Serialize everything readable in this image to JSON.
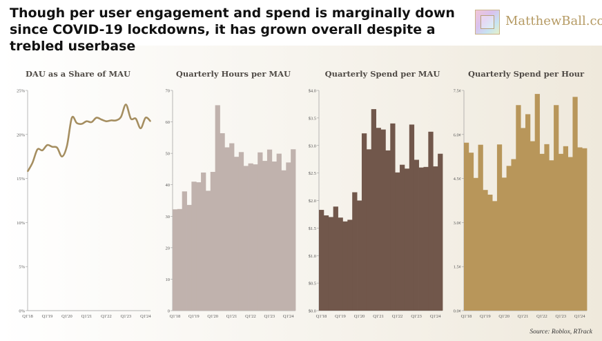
{
  "header": {
    "title": "Though per user engagement and spend is marginally down since COVID-19 lockdowns, it has grown overall despite a trebled userbase",
    "brand": "MatthewBall.co"
  },
  "source": "Source: Roblox, RTrack",
  "colors": {
    "dau": "#a58e60",
    "hours": "#c0b2ad",
    "spend_mau": "#71574b",
    "spend_hour": "#b8965a",
    "axis": "#9a9a9a",
    "tick_text": "#555555"
  },
  "chart_data": [
    {
      "type": "line",
      "title": "DAU as a Share of MAU",
      "x": [
        "Q1'18",
        "Q2'18",
        "Q3'18",
        "Q4'18",
        "Q1'19",
        "Q2'19",
        "Q3'19",
        "Q4'19",
        "Q1'20",
        "Q2'20",
        "Q3'20",
        "Q4'20",
        "Q1'21",
        "Q2'21",
        "Q3'21",
        "Q4'21",
        "Q1'22",
        "Q2'22",
        "Q3'22",
        "Q4'22",
        "Q1'23",
        "Q2'23",
        "Q3'23",
        "Q4'23",
        "Q1'24",
        "Q2'24"
      ],
      "series": [
        {
          "values": [
            15.8,
            16.8,
            18.3,
            18.2,
            18.8,
            18.6,
            18.5,
            17.5,
            18.7,
            21.9,
            21.3,
            21.2,
            21.5,
            21.4,
            21.9,
            21.7,
            21.5,
            21.6,
            21.6,
            22.0,
            23.4,
            21.8,
            21.8,
            20.7,
            21.9,
            21.5
          ]
        }
      ],
      "xticks": [
        "Q1'18",
        "Q1'19",
        "Q1'20",
        "Q1'21",
        "Q1'22",
        "Q1'23",
        "Q1'24"
      ],
      "ytick_labels": [
        "0%",
        "5%",
        "10%",
        "15%",
        "20%",
        "25%"
      ],
      "ylim": [
        0,
        25
      ]
    },
    {
      "type": "bar",
      "title": "Quarterly Hours per MAU",
      "categories": [
        "Q1'18",
        "Q2'18",
        "Q3'18",
        "Q4'18",
        "Q1'19",
        "Q2'19",
        "Q3'19",
        "Q4'19",
        "Q1'20",
        "Q2'20",
        "Q3'20",
        "Q4'20",
        "Q1'21",
        "Q2'21",
        "Q3'21",
        "Q4'21",
        "Q1'22",
        "Q2'22",
        "Q3'22",
        "Q4'22",
        "Q1'23",
        "Q2'23",
        "Q3'23",
        "Q4'23",
        "Q1'24",
        "Q2'24"
      ],
      "values": [
        32.2,
        32.3,
        37.9,
        33.6,
        41.0,
        40.8,
        43.9,
        38.1,
        44.1,
        65.3,
        56.4,
        51.9,
        53.2,
        48.9,
        50.4,
        46.0,
        46.8,
        46.5,
        50.3,
        47.6,
        51.2,
        47.4,
        49.9,
        44.6,
        47.1,
        51.3
      ],
      "xticks": [
        "Q1'18",
        "Q1'19",
        "Q1'20",
        "Q1'21",
        "Q1'22",
        "Q1'23",
        "Q1'24"
      ],
      "ytick_labels": [
        "0",
        "10",
        "20",
        "30",
        "40",
        "50",
        "60",
        "70"
      ],
      "ylim": [
        0,
        70
      ]
    },
    {
      "type": "bar",
      "title": "Quarterly Spend per MAU",
      "categories": [
        "Q1'18",
        "Q2'18",
        "Q3'18",
        "Q4'18",
        "Q1'19",
        "Q2'19",
        "Q3'19",
        "Q4'19",
        "Q1'20",
        "Q2'20",
        "Q3'20",
        "Q4'20",
        "Q1'21",
        "Q2'21",
        "Q3'21",
        "Q4'21",
        "Q1'22",
        "Q2'22",
        "Q3'22",
        "Q4'22",
        "Q1'23",
        "Q2'23",
        "Q3'23",
        "Q4'23",
        "Q1'24",
        "Q2'24"
      ],
      "values": [
        1.83,
        1.73,
        1.7,
        1.89,
        1.69,
        1.62,
        1.65,
        2.15,
        2.0,
        3.22,
        2.93,
        3.66,
        3.32,
        3.29,
        2.91,
        3.4,
        2.51,
        2.65,
        2.58,
        3.38,
        2.74,
        2.6,
        2.61,
        3.25,
        2.62,
        2.85
      ],
      "xticks": [
        "Q1'18",
        "Q1'19",
        "Q1'20",
        "Q1'21",
        "Q1'22",
        "Q1'23",
        "Q1'24"
      ],
      "ytick_labels": [
        "$0.0",
        "$0.5",
        "$1.0",
        "$1.5",
        "$2.0",
        "$2.5",
        "$3.0",
        "$3.5",
        "$4.0"
      ],
      "ylim": [
        0,
        4
      ]
    },
    {
      "type": "bar",
      "title": "Quarterly Spend per Hour",
      "categories": [
        "Q1'18",
        "Q2'18",
        "Q3'18",
        "Q4'18",
        "Q1'19",
        "Q2'19",
        "Q3'19",
        "Q4'19",
        "Q1'20",
        "Q2'20",
        "Q3'20",
        "Q4'20",
        "Q1'21",
        "Q2'21",
        "Q3'21",
        "Q4'21",
        "Q1'22",
        "Q2'22",
        "Q3'22",
        "Q4'22",
        "Q1'23",
        "Q2'23",
        "Q3'23",
        "Q4'23",
        "Q1'24",
        "Q2'24"
      ],
      "values": [
        5.72,
        5.38,
        4.52,
        5.65,
        4.11,
        3.95,
        3.73,
        5.66,
        4.53,
        4.93,
        5.16,
        7.0,
        6.22,
        6.69,
        5.77,
        7.38,
        5.34,
        5.67,
        5.12,
        7.0,
        5.34,
        5.6,
        5.23,
        7.28,
        5.56,
        5.53
      ],
      "xticks": [
        "Q1'18",
        "Q1'19",
        "Q1'20",
        "Q1'21",
        "Q1'22",
        "Q1'23",
        "Q1'24"
      ],
      "ytick_labels": [
        "0.0¢",
        "1.5¢",
        "3.0¢",
        "4.5¢",
        "6.0¢",
        "7.5¢"
      ],
      "ylim": [
        0,
        7.5
      ]
    }
  ]
}
